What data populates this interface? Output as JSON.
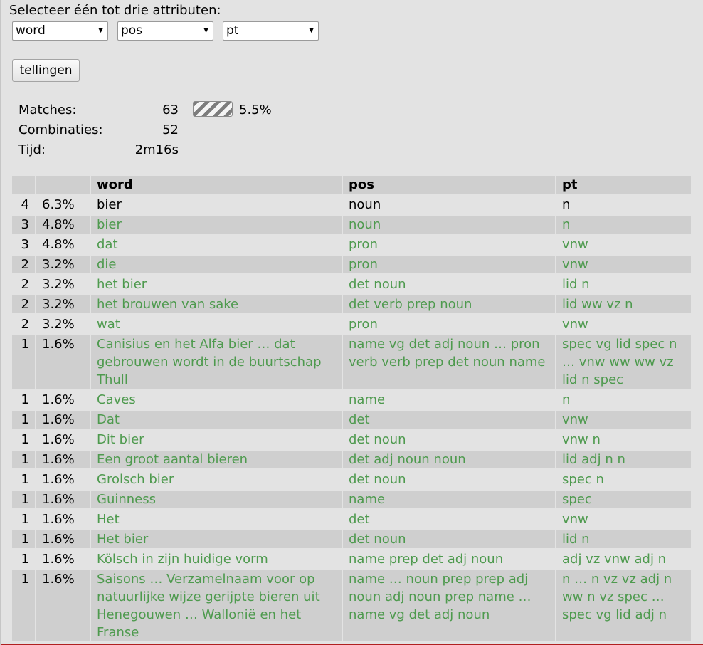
{
  "prompt": "Selecteer één tot drie attributen:",
  "selects": [
    {
      "value": "word"
    },
    {
      "value": "pos"
    },
    {
      "value": "pt"
    }
  ],
  "button_label": "tellingen",
  "stats": {
    "matches_label": "Matches:",
    "matches_value": "63",
    "combinaties_label": "Combinaties:",
    "combinaties_value": "52",
    "tijd_label": "Tijd:",
    "tijd_value": "2m16s",
    "progress_percent": 5.5,
    "progress_text": "5.5%"
  },
  "table": {
    "headers": [
      "",
      "",
      "word",
      "pos",
      "pt"
    ],
    "rows": [
      {
        "count": "4",
        "pct": "6.3%",
        "word": "bier",
        "pos": "noun",
        "pt": "n",
        "green": false
      },
      {
        "count": "3",
        "pct": "4.8%",
        "word": "bier",
        "pos": "noun",
        "pt": "n",
        "green": true
      },
      {
        "count": "3",
        "pct": "4.8%",
        "word": "dat",
        "pos": "pron",
        "pt": "vnw",
        "green": true
      },
      {
        "count": "2",
        "pct": "3.2%",
        "word": "die",
        "pos": "pron",
        "pt": "vnw",
        "green": true
      },
      {
        "count": "2",
        "pct": "3.2%",
        "word": "het bier",
        "pos": "det noun",
        "pt": "lid n",
        "green": true
      },
      {
        "count": "2",
        "pct": "3.2%",
        "word": "het brouwen van sake",
        "pos": "det verb prep noun",
        "pt": "lid ww vz n",
        "green": true
      },
      {
        "count": "2",
        "pct": "3.2%",
        "word": "wat",
        "pos": "pron",
        "pt": "vnw",
        "green": true
      },
      {
        "count": "1",
        "pct": "1.6%",
        "word": "Canisius en het Alfa bier … dat gebrouwen wordt in de buurtschap Thull",
        "pos": "name vg det adj noun … pron verb verb prep det noun name",
        "pt": "spec vg lid spec n … vnw ww ww vz lid n spec",
        "green": true
      },
      {
        "count": "1",
        "pct": "1.6%",
        "word": "Caves",
        "pos": "name",
        "pt": "n",
        "green": true
      },
      {
        "count": "1",
        "pct": "1.6%",
        "word": "Dat",
        "pos": "det",
        "pt": "vnw",
        "green": true
      },
      {
        "count": "1",
        "pct": "1.6%",
        "word": "Dit bier",
        "pos": "det noun",
        "pt": "vnw n",
        "green": true
      },
      {
        "count": "1",
        "pct": "1.6%",
        "word": "Een groot aantal bieren",
        "pos": "det adj noun noun",
        "pt": "lid adj n n",
        "green": true
      },
      {
        "count": "1",
        "pct": "1.6%",
        "word": "Grolsch bier",
        "pos": "det noun",
        "pt": "spec n",
        "green": true
      },
      {
        "count": "1",
        "pct": "1.6%",
        "word": "Guinness",
        "pos": "name",
        "pt": "spec",
        "green": true
      },
      {
        "count": "1",
        "pct": "1.6%",
        "word": "Het",
        "pos": "det",
        "pt": "vnw",
        "green": true
      },
      {
        "count": "1",
        "pct": "1.6%",
        "word": "Het bier",
        "pos": "det noun",
        "pt": "lid n",
        "green": true
      },
      {
        "count": "1",
        "pct": "1.6%",
        "word": "Kölsch in zijn huidige vorm",
        "pos": "name prep det adj noun",
        "pt": "adj vz vnw adj n",
        "green": true
      },
      {
        "count": "1",
        "pct": "1.6%",
        "word": "Saisons … Verzamelnaam voor op natuurlijke wijze gerijpte bieren uit Henegouwen … Wallonië en het Franse",
        "pos": "name … noun prep prep adj noun adj noun prep name … name vg det adj noun",
        "pt": "n … n vz vz adj n ww n vz spec … spec vg lid adj n",
        "green": true
      }
    ]
  }
}
